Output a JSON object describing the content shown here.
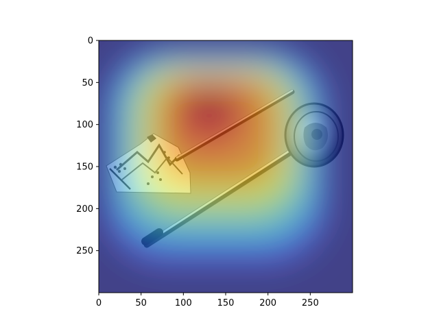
{
  "chart_data": {
    "type": "heatmap",
    "title": "",
    "xlabel": "",
    "ylabel": "",
    "xlim": [
      0,
      300
    ],
    "ylim": [
      300,
      0
    ],
    "x_ticks": [
      0,
      50,
      100,
      150,
      200,
      250
    ],
    "y_ticks": [
      0,
      50,
      100,
      150,
      200,
      250
    ],
    "x_tick_labels": [
      "0",
      "50",
      "100",
      "150",
      "200",
      "250"
    ],
    "y_tick_labels": [
      "0",
      "50",
      "100",
      "150",
      "200",
      "250"
    ],
    "grid": false,
    "colormap": "jet",
    "overlay_alpha": 0.5,
    "background_image_description": "grayscale photograph of a fragment of patterned cloth, a thin rod, and a long pin with a round ornamented coin-like head",
    "heat_peak": {
      "x": 130,
      "y": 95
    },
    "colors": {
      "jet_low": "#00007f",
      "jet_mid": "#7fff7f",
      "jet_high": "#7f0000"
    }
  }
}
